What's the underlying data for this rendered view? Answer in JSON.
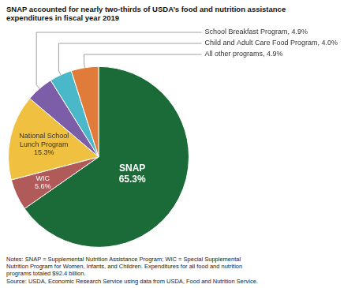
{
  "chart_data": {
    "type": "pie",
    "title": "SNAP accounted for nearly two-thirds of USDA’s food and nutrition assistance\nexpenditures in fiscal year 2019",
    "categories": [
      "SNAP\n65.3%",
      "WIC\n5.6%",
      "National School\nLunch Program\n15.3%",
      "School Breakfast Program, 4.9%",
      "Child and Adult Care Food Program, 4.0%",
      "All other programs, 4.9%"
    ],
    "values": [
      65.3,
      5.6,
      15.3,
      4.9,
      4.0,
      4.9
    ],
    "colors": [
      "#1a6b37",
      "#b05a5a",
      "#f0c040",
      "#7b5ea7",
      "#4ab8c8",
      "#e07b3a"
    ],
    "notes": "Notes: SNAP = Supplemental Nutrition Assistance Program; WIC = Special Supplemental\nNutrition Program for Women, Infants, and Children. Expenditures for all food and nutrition\nprograms totaled $92.4 billion.\nSource: USDA, Economic Research Service using data from USDA, Food and Nutrition Service."
  }
}
